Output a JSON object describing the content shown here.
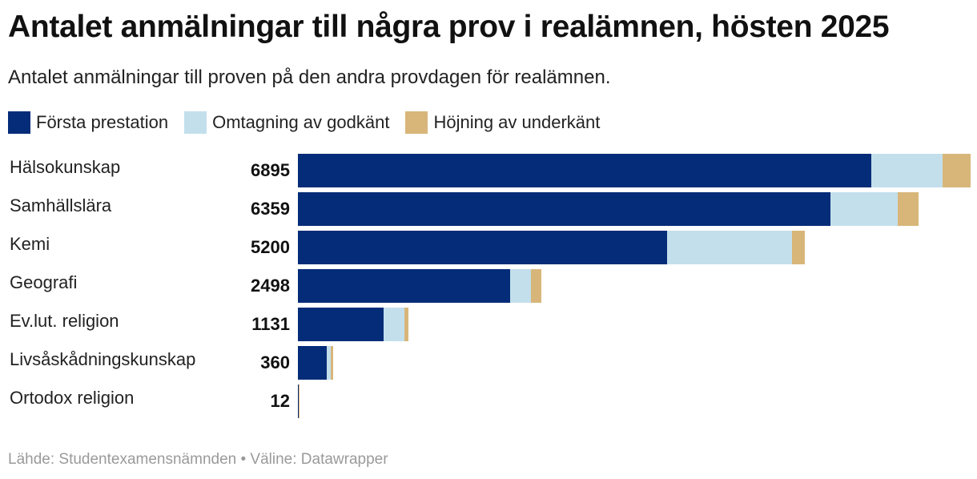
{
  "header": {
    "title": "Antalet anmälningar till några prov i realämnen, hösten 2025",
    "subtitle": "Antalet anmälningar till proven på den andra provdagen för realämnen."
  },
  "footer": {
    "source": "Lähde: Studentexamensnämnden • Väline: Datawrapper"
  },
  "chart_data": {
    "type": "bar",
    "orientation": "horizontal",
    "stacked": true,
    "title": "Antalet anmälningar till några prov i realämnen, hösten 2025",
    "subtitle": "Antalet anmälningar till proven på den andra provdagen för realämnen.",
    "xlim": [
      0,
      6895
    ],
    "legend_position": "top-left",
    "categories": [
      "Hälsokunskap",
      "Samhällslära",
      "Kemi",
      "Geografi",
      "Ev.lut. religion",
      "Livsåskådningskunskap",
      "Ortodox religion"
    ],
    "totals": [
      "6895",
      "6359",
      "5200",
      "2498",
      "1131",
      "360",
      "12"
    ],
    "series": [
      {
        "name": "Första prestation",
        "color": "#042c78",
        "values": [
          5876,
          5460,
          3784,
          2174,
          880,
          298,
          5
        ]
      },
      {
        "name": "Omtagning av godkänt",
        "color": "#c3dfec",
        "values": [
          730,
          690,
          1281,
          214,
          210,
          42,
          4
        ]
      },
      {
        "name": "Höjning av underkänt",
        "color": "#d8b67a",
        "values": [
          289,
          209,
          135,
          110,
          41,
          20,
          3
        ]
      }
    ]
  }
}
